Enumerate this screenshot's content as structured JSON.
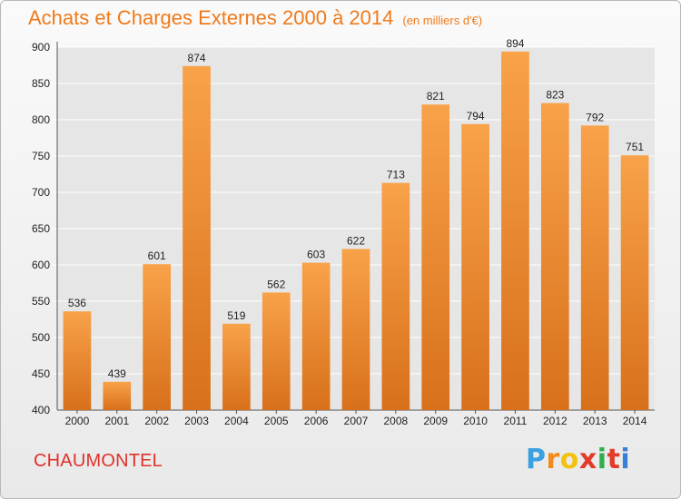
{
  "chart_data": {
    "type": "bar",
    "title": "Achats et Charges Externes 2000 à 2014",
    "unit_note": "(en milliers d'€)",
    "categories": [
      "2000",
      "2001",
      "2002",
      "2003",
      "2004",
      "2005",
      "2006",
      "2007",
      "2008",
      "2009",
      "2010",
      "2011",
      "2012",
      "2013",
      "2014"
    ],
    "values": [
      536,
      439,
      601,
      874,
      519,
      562,
      603,
      622,
      713,
      821,
      794,
      894,
      823,
      792,
      751
    ],
    "xlabel": "",
    "ylabel": "",
    "ylim": [
      400,
      900
    ],
    "yticks": [
      400,
      450,
      500,
      550,
      600,
      650,
      700,
      750,
      800,
      850,
      900
    ],
    "grid": true,
    "bar_color": "#f0872a"
  },
  "location": "CHAUMONTEL",
  "brand": {
    "letters": [
      "P",
      "r",
      "o",
      "x",
      "i",
      "t",
      "i"
    ],
    "colors": [
      "#3aa0e0",
      "#f28a1c",
      "#f2c20f",
      "#e23b2a",
      "#2eae4e",
      "#e23b2a",
      "#3a7fd4"
    ]
  }
}
